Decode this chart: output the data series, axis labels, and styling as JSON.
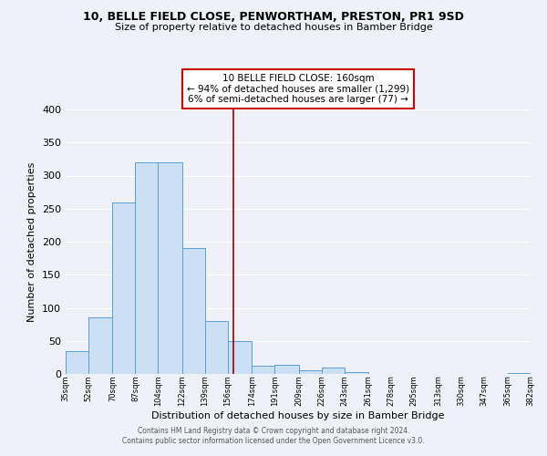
{
  "title1": "10, BELLE FIELD CLOSE, PENWORTHAM, PRESTON, PR1 9SD",
  "title2": "Size of property relative to detached houses in Bamber Bridge",
  "xlabel": "Distribution of detached houses by size in Bamber Bridge",
  "ylabel": "Number of detached properties",
  "bin_edges": [
    35,
    52,
    70,
    87,
    104,
    122,
    139,
    156,
    174,
    191,
    209,
    226,
    243,
    261,
    278,
    295,
    313,
    330,
    347,
    365,
    382
  ],
  "counts": [
    35,
    85,
    260,
    320,
    320,
    190,
    80,
    50,
    12,
    14,
    5,
    9,
    3,
    0,
    0,
    0,
    0,
    0,
    0,
    2
  ],
  "bar_facecolor": "#cce0f5",
  "bar_edgecolor": "#5a9fd4",
  "vline_x": 160,
  "vline_color": "#990000",
  "annotation_title": "10 BELLE FIELD CLOSE: 160sqm",
  "annotation_line1": "← 94% of detached houses are smaller (1,299)",
  "annotation_line2": "6% of semi-detached houses are larger (77) →",
  "annotation_box_edgecolor": "#cc0000",
  "background_color": "#eef2f8",
  "grid_color": "#ffffff",
  "footer1": "Contains HM Land Registry data © Crown copyright and database right 2024.",
  "footer2": "Contains public sector information licensed under the Open Government Licence v3.0.",
  "ylim": [
    0,
    400
  ],
  "tick_labels": [
    "35sqm",
    "52sqm",
    "70sqm",
    "87sqm",
    "104sqm",
    "122sqm",
    "139sqm",
    "156sqm",
    "174sqm",
    "191sqm",
    "209sqm",
    "226sqm",
    "243sqm",
    "261sqm",
    "278sqm",
    "295sqm",
    "313sqm",
    "330sqm",
    "347sqm",
    "365sqm",
    "382sqm"
  ]
}
